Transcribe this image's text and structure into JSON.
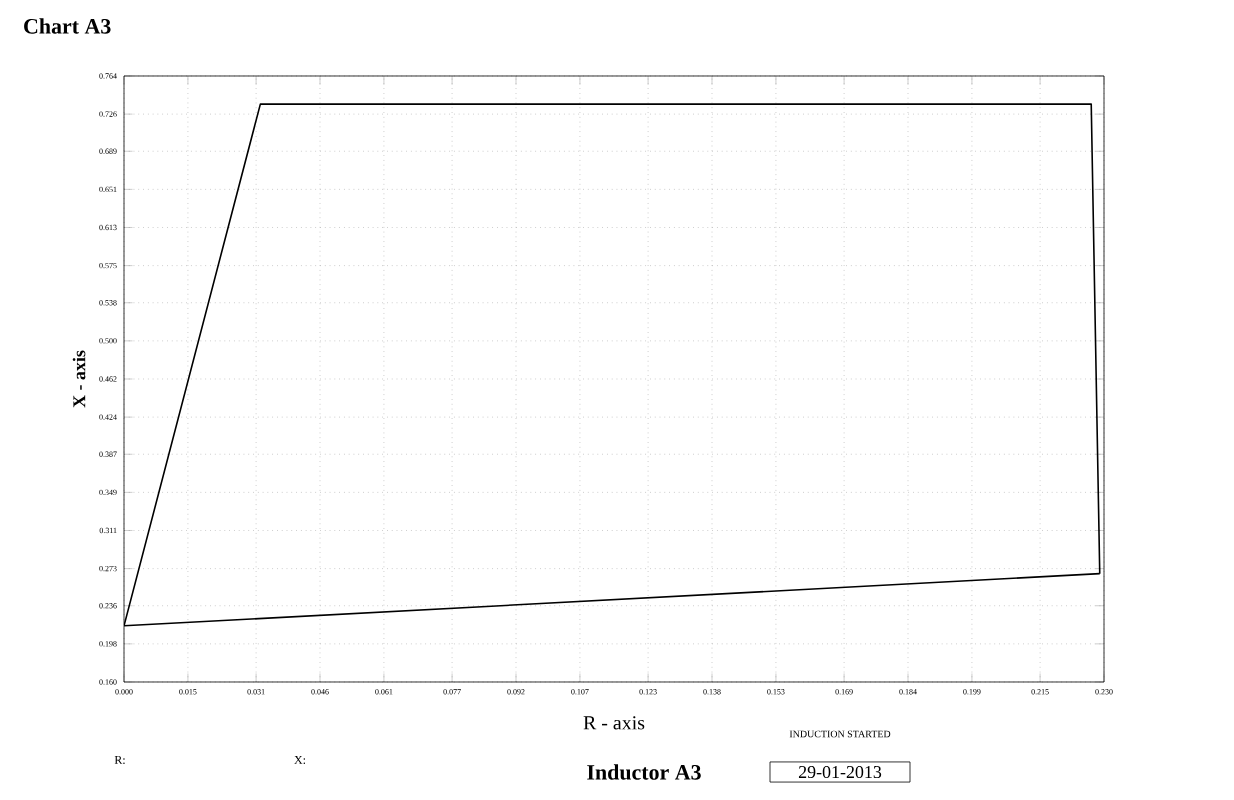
{
  "chart_data": {
    "type": "line",
    "title": "Chart A3",
    "subtitle": "Inductor A3",
    "xlabel": "R - axis",
    "ylabel": "X - axis",
    "series": [
      {
        "color": "#000000",
        "x": [
          0.0,
          0.032,
          0.227,
          0.229
        ],
        "values": [
          0.216,
          0.736,
          0.736,
          0.268
        ]
      },
      {
        "color": "#000000",
        "x": [
          0.0,
          0.229
        ],
        "values": [
          0.216,
          0.268
        ]
      }
    ],
    "xlim": [
      0.0,
      0.23
    ],
    "ylim": [
      0.16,
      0.764
    ],
    "xticks": [
      {
        "value": 0.0,
        "label": "0.000"
      },
      {
        "value": 0.015,
        "label": "0.015"
      },
      {
        "value": 0.031,
        "label": "0.031"
      },
      {
        "value": 0.046,
        "label": "0.046"
      },
      {
        "value": 0.061,
        "label": "0.061"
      },
      {
        "value": 0.077,
        "label": "0.077"
      },
      {
        "value": 0.092,
        "label": "0.092"
      },
      {
        "value": 0.107,
        "label": "0.107"
      },
      {
        "value": 0.123,
        "label": "0.123"
      },
      {
        "value": 0.138,
        "label": "0.138"
      },
      {
        "value": 0.153,
        "label": "0.153"
      },
      {
        "value": 0.169,
        "label": "0.169"
      },
      {
        "value": 0.184,
        "label": "0.184"
      },
      {
        "value": 0.199,
        "label": "0.199"
      },
      {
        "value": 0.215,
        "label": "0.215"
      },
      {
        "value": 0.23,
        "label": "0.230"
      }
    ],
    "yticks": [
      {
        "value": 0.16,
        "label": "0.160"
      },
      {
        "value": 0.198,
        "label": "0.198"
      },
      {
        "value": 0.236,
        "label": "0.236"
      },
      {
        "value": 0.273,
        "label": "0.273"
      },
      {
        "value": 0.311,
        "label": "0.311"
      },
      {
        "value": 0.349,
        "label": "0.349"
      },
      {
        "value": 0.387,
        "label": "0.387"
      },
      {
        "value": 0.424,
        "label": "0.424"
      },
      {
        "value": 0.462,
        "label": "0.462"
      },
      {
        "value": 0.5,
        "label": "0.500"
      },
      {
        "value": 0.538,
        "label": "0.538"
      },
      {
        "value": 0.575,
        "label": "0.575"
      },
      {
        "value": 0.613,
        "label": "0.613"
      },
      {
        "value": 0.651,
        "label": "0.651"
      },
      {
        "value": 0.689,
        "label": "0.689"
      },
      {
        "value": 0.726,
        "label": "0.726"
      },
      {
        "value": 0.764,
        "label": "0.764"
      }
    ],
    "grid": true,
    "annotations": [
      "R:",
      "X:",
      "INDUCTION STARTED",
      "29-01-2013"
    ]
  }
}
